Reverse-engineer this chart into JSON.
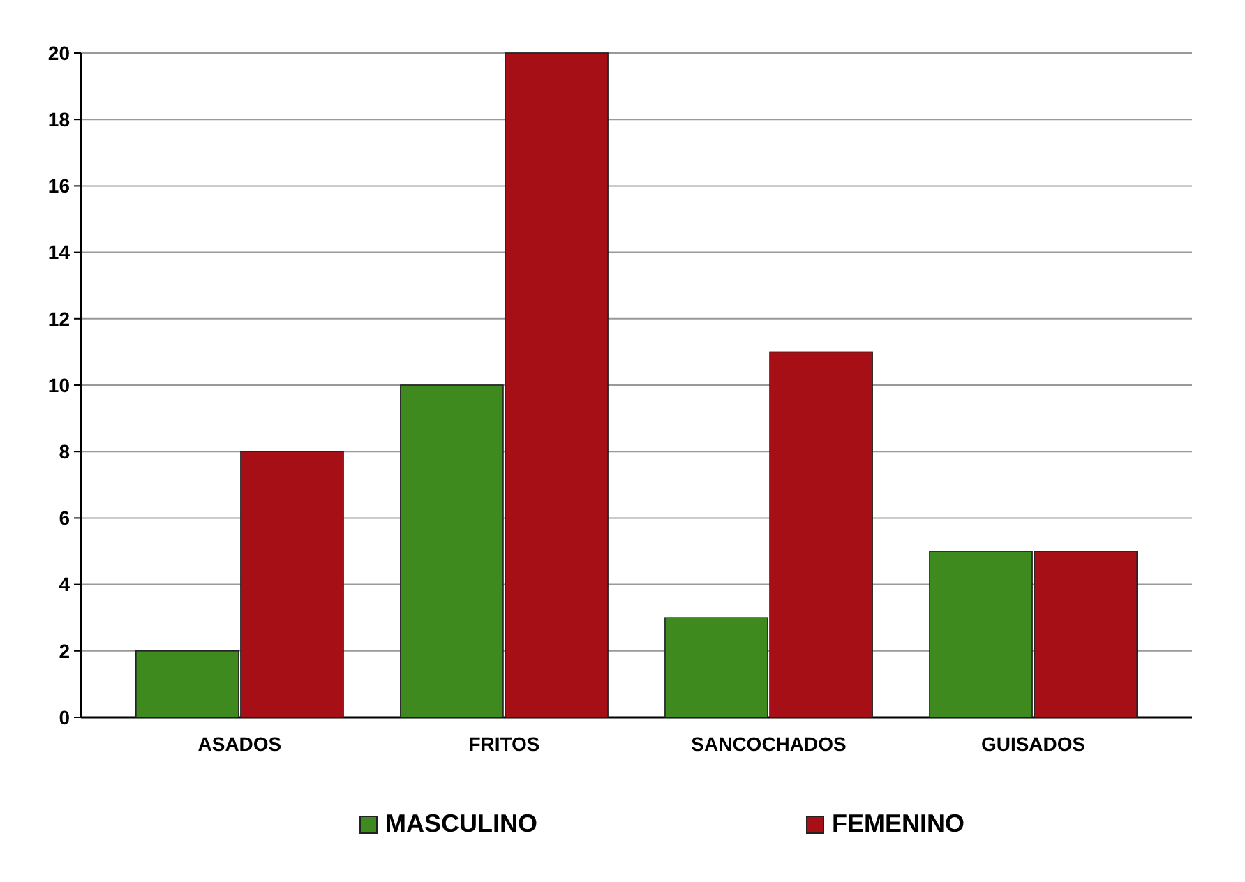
{
  "chart_data": {
    "type": "bar",
    "categories": [
      "ASADOS",
      "FRITOS",
      "SANCOCHADOS",
      "GUISADOS"
    ],
    "series": [
      {
        "name": "MASCULINO",
        "color": "#3f8a1e",
        "values": [
          2,
          10,
          3,
          5
        ]
      },
      {
        "name": "FEMENINO",
        "color": "#a50f15",
        "values": [
          8,
          20,
          11,
          5
        ]
      }
    ],
    "ylim": [
      0,
      20
    ],
    "yticks": [
      0,
      2,
      4,
      6,
      8,
      10,
      12,
      14,
      16,
      18,
      20
    ],
    "grid": "y",
    "legend": "bottom"
  }
}
